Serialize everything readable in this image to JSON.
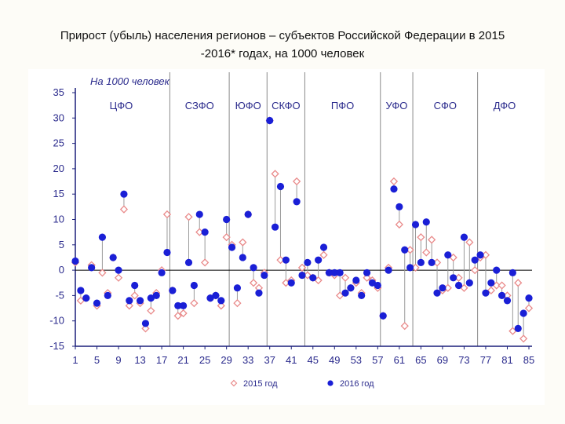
{
  "slide": {
    "title_line1": "Прирост (убыль) населения регионов – субъектов Российской Федерации в 2015",
    "title_line2": "-2016* годах, на 1000 человек"
  },
  "chart_data": {
    "type": "scatter",
    "unit_label": "На 1000 человек",
    "ylim": [
      -15,
      35
    ],
    "yticks": [
      -15,
      -10,
      -5,
      0,
      5,
      10,
      15,
      20,
      25,
      30,
      35
    ],
    "xlim": [
      1,
      85
    ],
    "xticks": [
      1,
      5,
      9,
      13,
      17,
      21,
      25,
      29,
      33,
      37,
      41,
      45,
      49,
      53,
      57,
      61,
      65,
      69,
      73,
      77,
      81,
      85
    ],
    "grid": false,
    "legend_position": "bottom",
    "colors": {
      "s2015": "#e98a8a",
      "s2016": "#1a1fd6",
      "axis": "#1a1f7a",
      "divider": "#8a8a8a"
    },
    "regions": [
      {
        "name": "ЦФО",
        "start": 1,
        "end": 18
      },
      {
        "name": "СЗФО",
        "start": 19,
        "end": 29
      },
      {
        "name": "ЮФО",
        "start": 30,
        "end": 36
      },
      {
        "name": "СКФО",
        "start": 37,
        "end": 43
      },
      {
        "name": "ПФО",
        "start": 44,
        "end": 57
      },
      {
        "name": "УФО",
        "start": 58,
        "end": 63
      },
      {
        "name": "СФО",
        "start": 64,
        "end": 75
      },
      {
        "name": "ДФО",
        "start": 76,
        "end": 85
      }
    ],
    "x": [
      1,
      2,
      3,
      4,
      5,
      6,
      7,
      8,
      9,
      10,
      11,
      12,
      13,
      14,
      15,
      16,
      17,
      18,
      19,
      20,
      21,
      22,
      23,
      24,
      25,
      26,
      27,
      28,
      29,
      30,
      31,
      32,
      33,
      34,
      35,
      36,
      37,
      38,
      39,
      40,
      41,
      42,
      43,
      44,
      45,
      46,
      47,
      48,
      49,
      50,
      51,
      52,
      53,
      54,
      55,
      56,
      57,
      58,
      59,
      60,
      61,
      62,
      63,
      64,
      65,
      66,
      67,
      68,
      69,
      70,
      71,
      72,
      73,
      74,
      75,
      76,
      77,
      78,
      79,
      80,
      81,
      82,
      83,
      84,
      85
    ],
    "series": [
      {
        "name": "2015 год",
        "marker": "diamond",
        "values": [
          1.5,
          -6,
          -5.5,
          1,
          -7,
          -0.5,
          -4.5,
          2.5,
          -1.5,
          12,
          -7,
          -5,
          -6.5,
          -11.5,
          -8,
          -4.5,
          0,
          11,
          -4,
          -9,
          -8.5,
          10.5,
          -6.5,
          7.5,
          1.5,
          -5.5,
          -5,
          -7,
          6.5,
          5,
          -6.5,
          5.5,
          11,
          -2.5,
          -3.5,
          -0.5,
          29.5,
          19,
          2,
          -2.5,
          -2,
          17.5,
          0.5,
          -1,
          -1.5,
          -2,
          3,
          -0.5,
          -1,
          -5,
          -1.5,
          -3.5,
          -2.5,
          -4.5,
          -1.5,
          -2,
          -3.5,
          -9,
          0.5,
          17.5,
          9,
          -11,
          4,
          0.5,
          6.5,
          3.5,
          6,
          1.5,
          -4,
          -3.5,
          2.5,
          -1.5,
          -3.5,
          5.5,
          0,
          2.5,
          3,
          -4,
          -3,
          -3,
          -5,
          -12,
          -2.5,
          -13.5,
          -7.5
        ]
      },
      {
        "name": "2016 год",
        "marker": "circle",
        "values": [
          1.8,
          -4,
          -5.5,
          0.5,
          -6.5,
          6.5,
          -5,
          2.5,
          0,
          15,
          -6,
          -3,
          -6,
          -10.5,
          -5.5,
          -5,
          -0.5,
          3.5,
          -4,
          -7,
          -7,
          1.5,
          -3,
          11,
          7.5,
          -5.5,
          -5,
          -6,
          10,
          4.5,
          -3.5,
          2.5,
          11,
          0.5,
          -4.5,
          -1,
          29.5,
          8.5,
          16.5,
          2,
          -2.5,
          13.5,
          -1,
          1.5,
          -1.5,
          2,
          4.5,
          -0.5,
          -0.5,
          -0.5,
          -4.5,
          -3.5,
          -2,
          -5,
          -0.5,
          -2.5,
          -3,
          -9,
          0,
          16,
          12.5,
          4,
          0.5,
          9,
          1.5,
          9.5,
          1.5,
          -4.5,
          -3.5,
          3,
          -1.5,
          -3,
          6.5,
          -2.5,
          2,
          3,
          -4.5,
          -2.5,
          0,
          -5,
          -6,
          -0.5,
          -11.5,
          -8.5,
          -5.5
        ]
      }
    ]
  }
}
